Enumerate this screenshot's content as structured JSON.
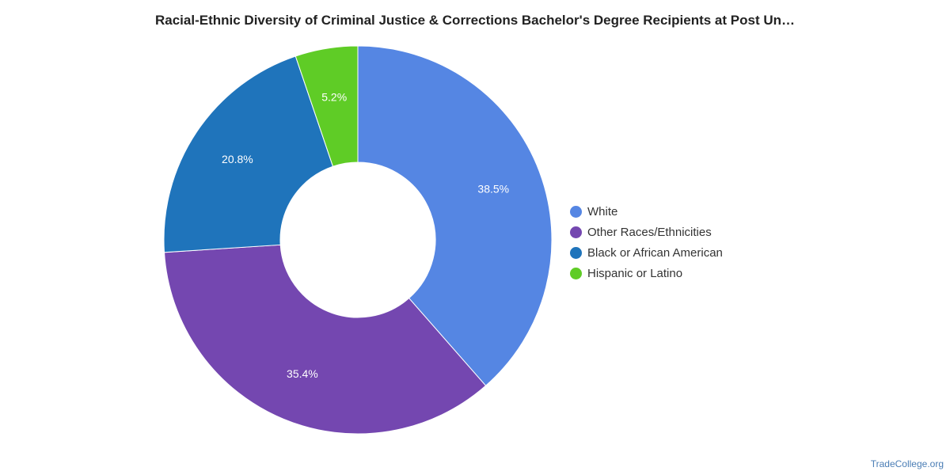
{
  "chart_data": {
    "type": "pie",
    "title": "Racial-Ethnic Diversity of Criminal Justice & Corrections Bachelor's Degree Recipients at Post Un…",
    "slices": [
      {
        "label": "White",
        "value": 38.5,
        "value_label": "38.5%",
        "color": "#5586e3"
      },
      {
        "label": "Other Races/Ethnicities",
        "value": 35.4,
        "value_label": "35.4%",
        "color": "#7447b0"
      },
      {
        "label": "Black or African American",
        "value": 20.8,
        "value_label": "20.8%",
        "color": "#1f74bb"
      },
      {
        "label": "Hispanic or Latino",
        "value": 5.2,
        "value_label": "5.2%",
        "color": "#5fcc26"
      }
    ],
    "donut": true,
    "legend_position": "right"
  },
  "footer": {
    "credit": "TradeCollege.org"
  }
}
